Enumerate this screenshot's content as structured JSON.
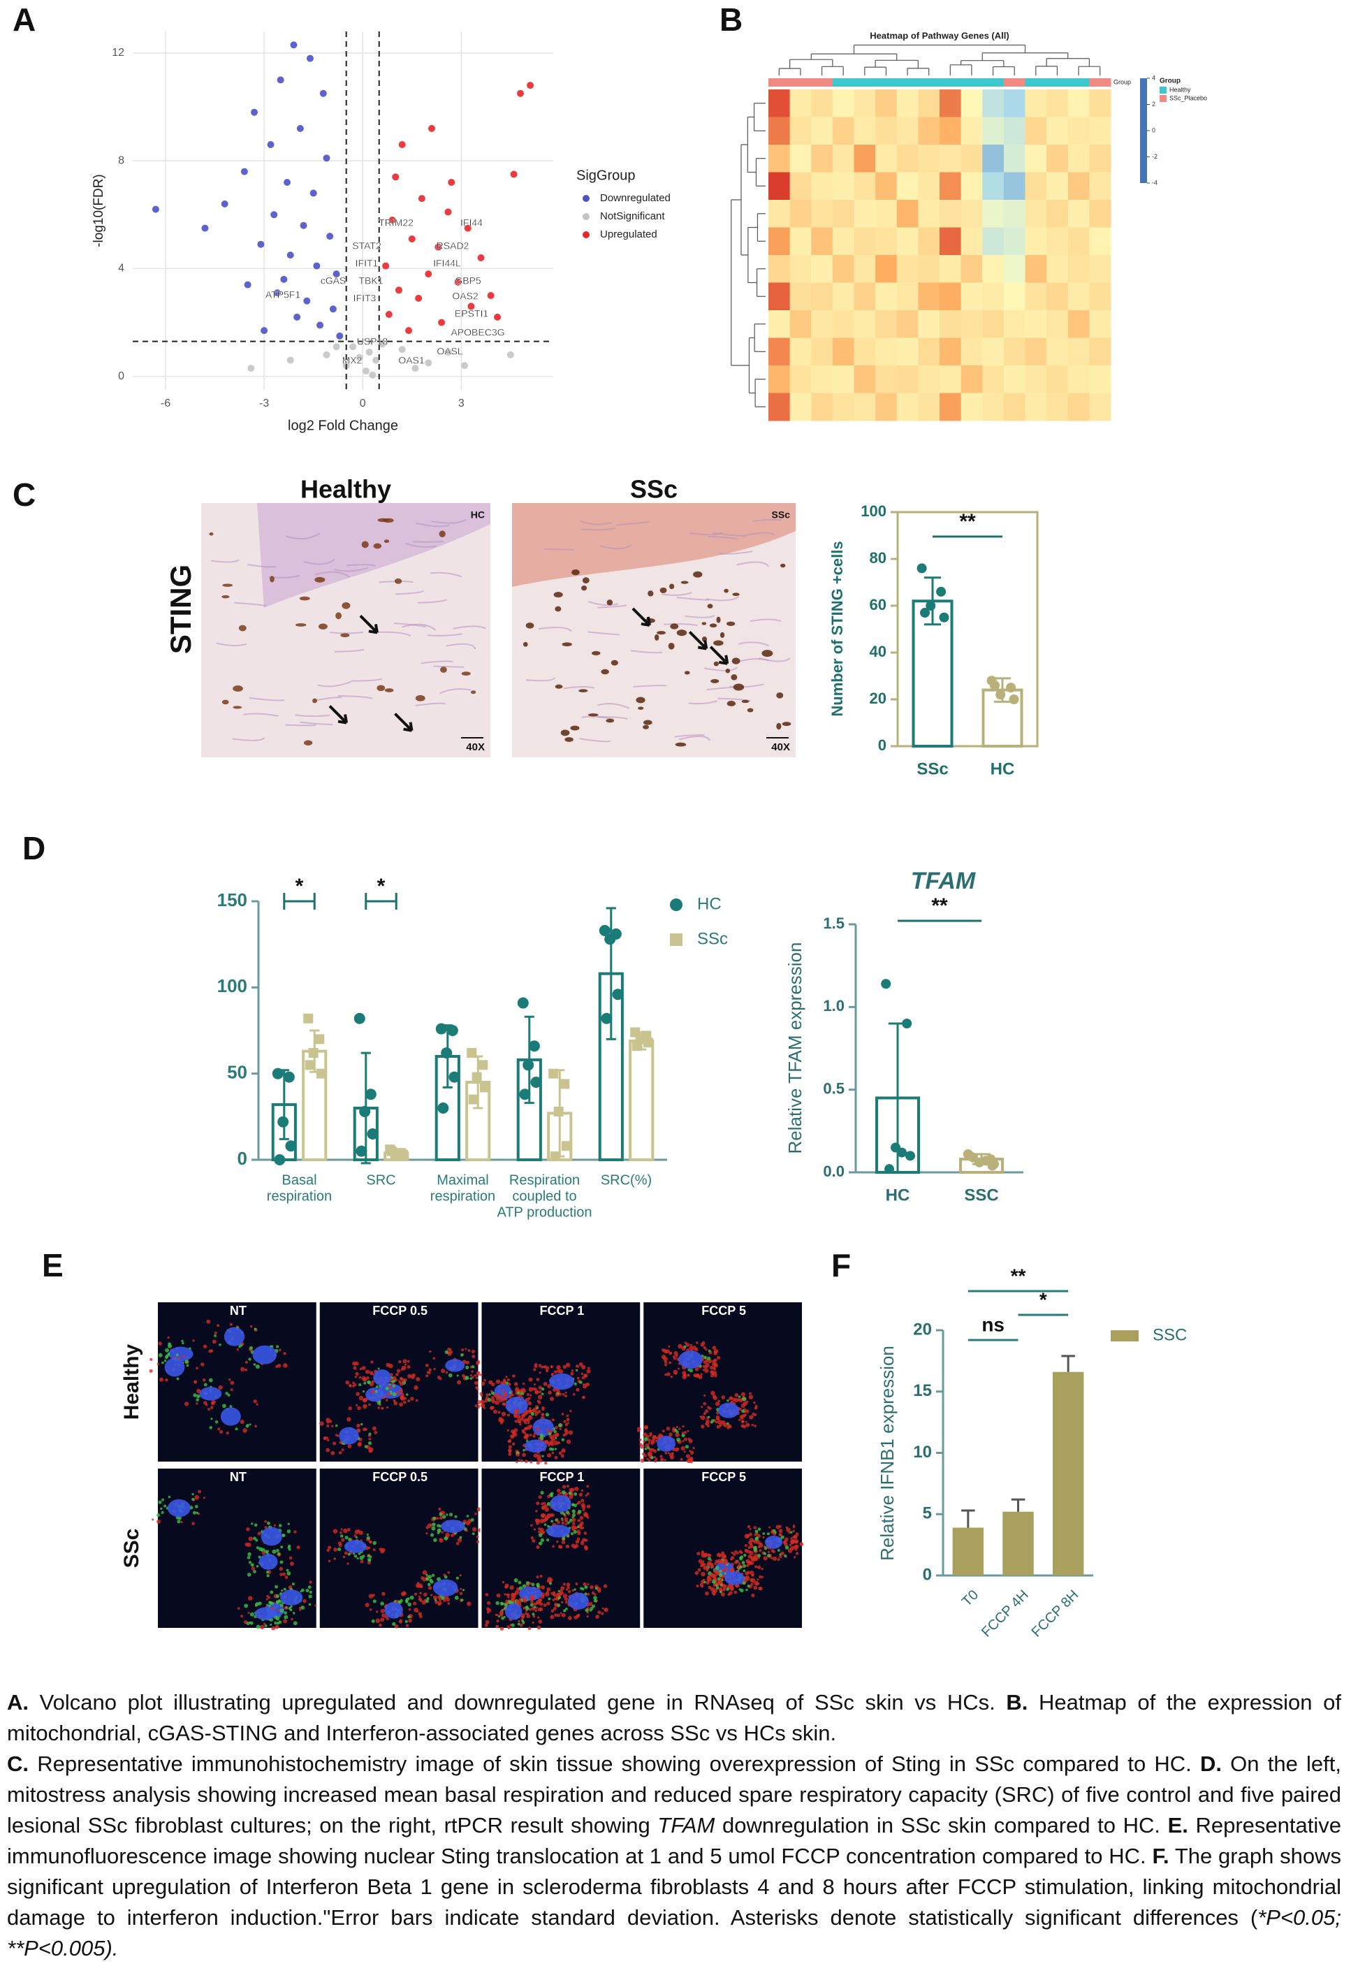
{
  "panels": [
    "A",
    "B",
    "C",
    "D",
    "E",
    "F"
  ],
  "chart_data": [
    {
      "type": "scatter",
      "x_label": "log2 Fold Change",
      "y_label": "-log10(FDR)",
      "xlim": [
        -7,
        5.8
      ],
      "ylim": [
        -0.5,
        12.8
      ],
      "xticks": [
        -6,
        -3,
        0,
        3
      ],
      "yticks": [
        0,
        4,
        8,
        12
      ],
      "grid": true,
      "thresholds": {
        "x": [
          -0.5,
          0.5
        ],
        "y": 1.3
      },
      "legend_title": "SigGroup",
      "series": [
        {
          "name": "Downregulated",
          "color": "#4a52c6",
          "x": [
            -2.1,
            -1.6,
            -2.5,
            -1.2,
            -3.3,
            -1.9,
            -2.8,
            -1.1,
            -3.6,
            -2.3,
            -1.5,
            -4.2,
            -2.7,
            -1.8,
            -1.0,
            -3.1,
            -2.2,
            -1.4,
            -0.8,
            -3.5,
            -2.6,
            -1.7,
            -0.9,
            -2.0,
            -1.3,
            -3.0,
            -0.7,
            -6.3,
            -4.8,
            -2.4
          ],
          "values": [
            12.3,
            11.8,
            11,
            10.5,
            9.8,
            9.2,
            8.6,
            8.1,
            7.6,
            7.2,
            6.8,
            6.4,
            6,
            5.6,
            5.2,
            4.9,
            4.5,
            4.1,
            3.8,
            3.4,
            3.1,
            2.8,
            2.5,
            2.2,
            1.9,
            1.7,
            1.5,
            6.2,
            5.5,
            3.6
          ]
        },
        {
          "name": "NotSignificant",
          "color": "#c4c4c4",
          "x": [
            -0.3,
            0.2,
            0.4,
            -0.5,
            0.1,
            1.2,
            -1.1,
            2.0,
            -2.2,
            3.1,
            -0.1,
            0.6,
            -0.8,
            1.6,
            4.5,
            -3.4,
            0.3,
            2.6
          ],
          "values": [
            1.1,
            0.9,
            0.6,
            0.4,
            0.2,
            1.0,
            0.8,
            0.5,
            0.6,
            0.4,
            0.7,
            1.2,
            1.1,
            0.3,
            0.8,
            0.3,
            0.05,
            0.9
          ]
        },
        {
          "name": "Upregulated",
          "color": "#e8262b",
          "x": [
            5.1,
            4.8,
            2.1,
            1.2,
            4.6,
            1.8,
            2.6,
            0.9,
            3.2,
            1.5,
            2.3,
            3.6,
            0.7,
            2.0,
            2.9,
            1.1,
            1.7,
            3.3,
            0.8,
            2.4,
            1.4,
            3.9,
            2.7,
            1.0,
            4.1
          ],
          "values": [
            10.8,
            10.5,
            9.2,
            8.6,
            7.5,
            6.6,
            6.1,
            5.8,
            5.5,
            5.1,
            4.8,
            4.4,
            4.1,
            3.8,
            3.5,
            3.2,
            2.9,
            2.6,
            2.3,
            2.0,
            1.7,
            3.0,
            7.2,
            7.4,
            2.2
          ]
        }
      ],
      "gene_labels": [
        "TRIM22",
        "IFI44",
        "STAT2",
        "RSAD2",
        "IFIT1",
        "IFI44L",
        "TBK1",
        "GBP5",
        "cGAS",
        "IFIT3",
        "OAS2",
        "ATP5F1",
        "EPSTI1",
        "APOBEC3G",
        "USP18",
        "OASL",
        "MX2",
        "OAS1"
      ]
    },
    {
      "type": "heatmap",
      "title": "Heatmap of Pathway Genes (All)",
      "legend_title": "Group",
      "groups": [
        {
          "name": "Healthy",
          "color": "#3fc7cf"
        },
        {
          "name": "SSc_Placebo",
          "color": "#f08a84"
        }
      ],
      "zlim": [
        -4,
        4
      ],
      "zticks": [
        4,
        2,
        0,
        -2,
        -4
      ],
      "colors": [
        "#4575b4",
        "#abd9e9",
        "#ffffbf",
        "#fdae61",
        "#d73027"
      ],
      "values": [
        [
          3.5,
          0.5,
          0.8,
          0.3,
          0.6,
          1.2,
          0.4,
          0.9,
          2.8,
          0.2,
          -1.5,
          -2.0,
          0.5,
          0.7,
          0.3,
          0.8
        ],
        [
          2.8,
          0.7,
          0.4,
          1.1,
          0.5,
          0.8,
          0.6,
          1.4,
          1.9,
          0.4,
          -0.8,
          -1.2,
          1.0,
          0.4,
          0.6,
          0.5
        ],
        [
          1.5,
          0.3,
          1.2,
          0.6,
          2.2,
          0.5,
          0.9,
          0.7,
          0.6,
          0.8,
          -2.5,
          -1.0,
          0.3,
          1.1,
          0.5,
          0.9
        ],
        [
          3.8,
          0.9,
          0.5,
          0.4,
          0.7,
          1.6,
          0.3,
          0.6,
          2.5,
          0.3,
          -1.8,
          -2.4,
          0.8,
          0.4,
          1.3,
          0.6
        ],
        [
          0.6,
          1.1,
          0.7,
          0.9,
          0.4,
          0.5,
          1.8,
          0.5,
          0.7,
          0.6,
          -0.5,
          -0.7,
          0.6,
          0.9,
          0.4,
          1.0
        ],
        [
          2.2,
          0.4,
          1.5,
          0.5,
          0.8,
          0.7,
          0.4,
          1.0,
          3.1,
          0.5,
          -1.2,
          -0.9,
          0.4,
          0.6,
          0.8,
          0.3
        ],
        [
          1.0,
          0.6,
          0.4,
          1.3,
          0.6,
          2.0,
          0.7,
          0.8,
          0.5,
          1.2,
          0.3,
          -0.4,
          1.5,
          0.5,
          0.7,
          0.6
        ],
        [
          3.2,
          0.8,
          0.9,
          0.5,
          1.1,
          0.4,
          0.6,
          1.7,
          2.0,
          0.4,
          0.5,
          0.2,
          0.7,
          1.0,
          0.5,
          0.8
        ],
        [
          0.4,
          1.3,
          0.6,
          0.7,
          0.5,
          0.9,
          1.2,
          0.4,
          0.8,
          0.7,
          0.9,
          0.5,
          0.4,
          0.6,
          1.4,
          0.5
        ],
        [
          2.6,
          0.5,
          0.8,
          1.6,
          0.7,
          0.5,
          0.4,
          0.9,
          1.7,
          0.6,
          0.4,
          0.8,
          1.1,
          0.5,
          0.6,
          0.9
        ],
        [
          1.8,
          0.7,
          0.5,
          0.4,
          1.4,
          0.8,
          0.9,
          0.6,
          0.5,
          1.5,
          0.7,
          0.4,
          0.6,
          0.8,
          0.5,
          0.4
        ],
        [
          3.0,
          0.4,
          1.0,
          0.7,
          0.6,
          1.3,
          0.5,
          0.7,
          2.2,
          0.4,
          0.6,
          0.9,
          0.5,
          0.7,
          1.0,
          0.6
        ]
      ]
    },
    {
      "type": "bar",
      "y_label": "Number of STING +cells",
      "categories": [
        "SSc",
        "HC"
      ],
      "values": [
        62,
        24
      ],
      "errors": [
        10,
        5
      ],
      "points": [
        [
          76,
          66,
          60,
          55,
          57
        ],
        [
          28,
          25,
          22,
          20,
          26
        ]
      ],
      "colors": [
        "#1b7b76",
        "#b8b078"
      ],
      "bar_style": "outline",
      "ylim": [
        0,
        100
      ],
      "yticks": [
        0,
        20,
        40,
        60,
        80,
        100
      ],
      "significance": [
        "**"
      ]
    },
    {
      "type": "bar",
      "categories": [
        [
          "Basal",
          "respiration"
        ],
        [
          "SRC"
        ],
        [
          "Maximal",
          "respiration"
        ],
        [
          "Respiration",
          "coupled to",
          "ATP production"
        ],
        [
          "SRC(%)"
        ]
      ],
      "series": [
        {
          "name": "HC",
          "color": "#1b7b76",
          "marker": "circle",
          "values": [
            32,
            30,
            60,
            58,
            108
          ],
          "errors": [
            20,
            32,
            18,
            25,
            38
          ],
          "points": [
            [
              50,
              48,
              22,
              8,
              0
            ],
            [
              82,
              38,
              28,
              15,
              5
            ],
            [
              76,
              75,
              62,
              48,
              30
            ],
            [
              91,
              66,
              55,
              45,
              38
            ],
            [
              133,
              131,
              128,
              96,
              82
            ]
          ]
        },
        {
          "name": "SSc",
          "color": "#c9c48f",
          "marker": "square",
          "values": [
            63,
            4,
            45,
            27,
            69
          ],
          "errors": [
            12,
            2,
            15,
            25,
            5
          ],
          "points": [
            [
              82,
              70,
              62,
              50,
              55
            ],
            [
              6,
              4,
              2,
              3,
              5
            ],
            [
              62,
              55,
              48,
              42,
              35
            ],
            [
              50,
              44,
              28,
              8,
              2
            ],
            [
              74,
              72,
              70,
              68,
              66
            ]
          ]
        }
      ],
      "bar_style": "outline",
      "ylim": [
        0,
        150
      ],
      "yticks": [
        0,
        50,
        100,
        150
      ],
      "significance": [
        "*",
        "*"
      ]
    },
    {
      "type": "bar",
      "title": "TFAM",
      "y_label": "Relative TFAM expression",
      "categories": [
        "HC",
        "SSC"
      ],
      "values": [
        0.45,
        0.08
      ],
      "errors": [
        0.45,
        0.03
      ],
      "points": [
        [
          1.14,
          0.9,
          0.15,
          0.1,
          0.02,
          0.12
        ],
        [
          0.1,
          0.08,
          0.06,
          0.05,
          0.09,
          0.07,
          0.11,
          0.04
        ]
      ],
      "colors": [
        "#1b7b76",
        "#b8b078"
      ],
      "bar_style": "outline",
      "ylim": [
        0,
        1.5
      ],
      "yticks": [
        {
          "value": 0,
          "label": "0.0"
        },
        0.5,
        {
          "value": 1,
          "label": "1.0"
        },
        1.5
      ],
      "significance": [
        "**"
      ]
    },
    {
      "type": "bar",
      "y_label": "Relative IFNB1 expression",
      "categories": [
        "T0",
        "FCCP 4H",
        "FCCP 8H"
      ],
      "series": [
        {
          "name": "SSC",
          "color": "#a8a05c",
          "marker": "rect",
          "values": [
            3.9,
            5.2,
            16.6
          ],
          "errors": [
            1.4,
            1.0,
            1.3
          ]
        }
      ],
      "bar_style": "filled",
      "ylim": [
        0,
        20
      ],
      "yticks": [
        0,
        5,
        10,
        15,
        20
      ],
      "significance": [
        "ns",
        "*",
        "**"
      ]
    }
  ],
  "ihc": {
    "titles": [
      "Healthy",
      "SSc"
    ],
    "stain": "STING",
    "corner_labels": [
      "HC",
      "SSc"
    ],
    "magnification": "40X"
  },
  "immunofluorescence": {
    "columns": [
      "NT",
      "FCCP 0.5",
      "FCCP 1",
      "FCCP 5"
    ],
    "rows": [
      "Healthy",
      "SSc"
    ]
  },
  "caption": [
    [
      {
        "text": "A.",
        "style": "bold"
      },
      {
        "text": " Volcano plot illustrating upregulated and downregulated gene in RNAseq of SSc skin vs HCs. ",
        "style": "normal"
      },
      {
        "text": "B.",
        "style": "bold"
      },
      {
        "text": " Heatmap of the expression of mitochondrial, cGAS-STING and Interferon-associated genes across SSc vs HCs skin.",
        "style": "normal"
      }
    ],
    [
      {
        "text": "C.",
        "style": "bold"
      },
      {
        "text": " Representative immunohistochemistry image of skin tissue showing overexpression of Sting in SSc compared to HC. ",
        "style": "normal"
      },
      {
        "text": "D.",
        "style": "bold"
      },
      {
        "text": " On the left, mitostress analysis showing increased mean basal respiration and reduced spare respiratory capacity (SRC) of five control and five paired lesional SSc fibroblast cultures; on the right, rtPCR result showing ",
        "style": "normal"
      },
      {
        "text": "TFAM",
        "style": "italic"
      },
      {
        "text": " downregulation in SSc skin compared to HC. ",
        "style": "normal"
      },
      {
        "text": "E.",
        "style": "bold"
      },
      {
        "text": " Representative immunofluorescence image showing nuclear Sting translocation at 1 and 5 umol FCCP concentration compared to HC. ",
        "style": "normal"
      },
      {
        "text": "F.",
        "style": "bold"
      },
      {
        "text": " The graph shows significant upregulation of Interferon Beta 1 gene in scleroderma fibroblasts 4 and 8 hours after FCCP stimulation, linking mitochondrial damage to interferon induction.\"Error bars indicate standard deviation. Asterisks denote statistically significant differences (",
        "style": "normal"
      },
      {
        "text": "*P<0.05; **P<0.005).",
        "style": "italic"
      }
    ]
  ]
}
